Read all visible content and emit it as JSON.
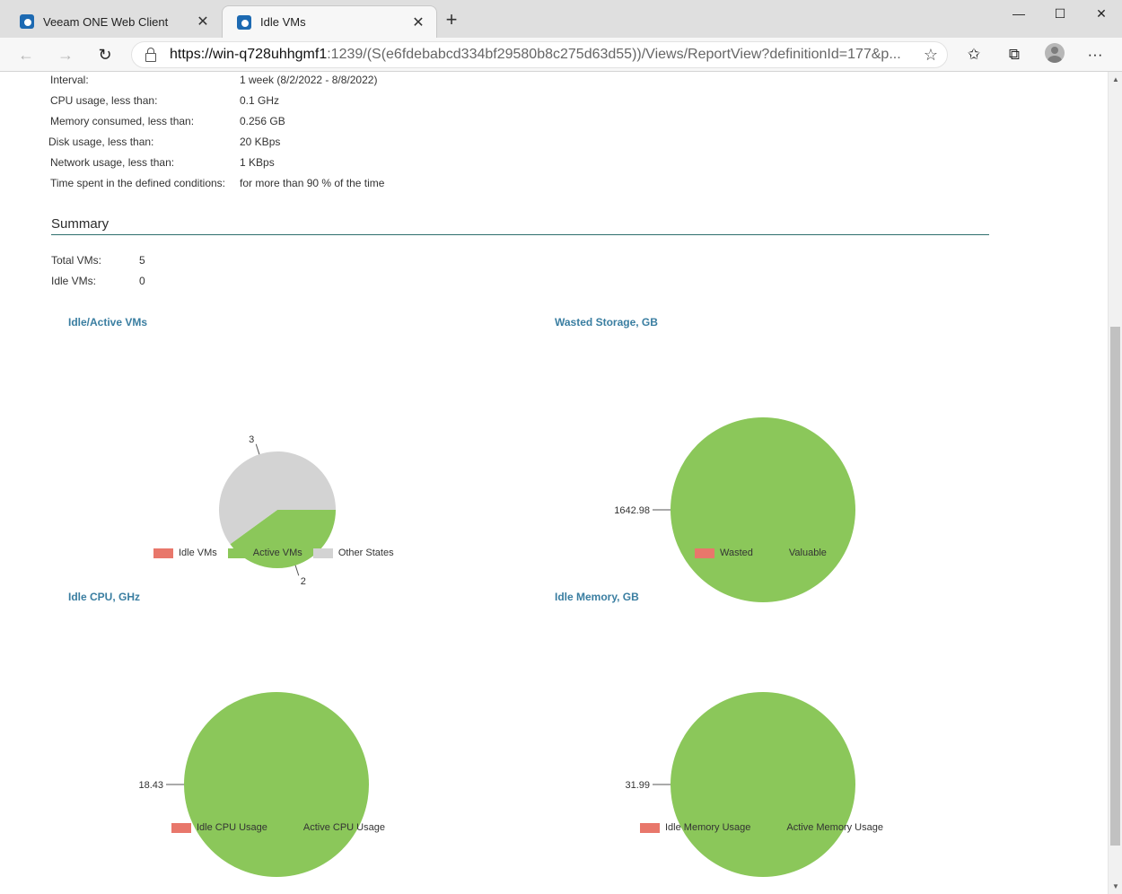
{
  "browser": {
    "tabs": [
      {
        "title": "Veeam ONE Web Client",
        "active": false
      },
      {
        "title": "Idle VMs",
        "active": true
      }
    ],
    "url_host": "https://win-q728uhhgmf1",
    "url_rest": ":1239/(S(e6fdebabcd334bf29580b8c275d63d55))/Views/ReportView?definitionId=177&p..."
  },
  "params": [
    {
      "label": "Interval:",
      "value": "1 week (8/2/2022 - 8/8/2022)"
    },
    {
      "label": "CPU usage, less than:",
      "value": "0.1 GHz"
    },
    {
      "label": "Memory consumed, less than:",
      "value": "0.256 GB"
    },
    {
      "label": "Disk usage, less than:",
      "value": "20 KBps"
    },
    {
      "label": "Network usage, less than:",
      "value": "1 KBps"
    },
    {
      "label": "Time spent in the defined conditions:",
      "value": "for more than 90 % of the time"
    }
  ],
  "summary": {
    "title": "Summary",
    "rows": [
      {
        "label": "Total VMs:",
        "value": "5"
      },
      {
        "label": "Idle VMs:",
        "value": "0"
      }
    ]
  },
  "colors": {
    "red": "#e8776b",
    "green": "#8bc75a",
    "gray": "#d3d3d3",
    "accent_title": "#3a7ea1",
    "rule": "#2f6f6d"
  },
  "chart_data": [
    {
      "type": "pie",
      "title": "Idle/Active VMs",
      "categories": [
        "Idle VMs",
        "Active VMs",
        "Other States"
      ],
      "values": [
        0,
        2,
        3
      ],
      "data_labels": [
        "",
        "2",
        "3"
      ],
      "colors": [
        "#e8776b",
        "#8bc75a",
        "#d3d3d3"
      ],
      "legend": "bottom"
    },
    {
      "type": "pie",
      "title": "Wasted Storage, GB",
      "categories": [
        "Wasted",
        "Valuable"
      ],
      "values": [
        0,
        1642.98
      ],
      "data_labels": [
        "",
        "1642.98"
      ],
      "colors": [
        "#e8776b",
        "#8bc75a"
      ],
      "legend": "bottom"
    },
    {
      "type": "pie",
      "title": "Idle CPU, GHz",
      "categories": [
        "Idle CPU Usage",
        "Active CPU Usage"
      ],
      "values": [
        0,
        18.43
      ],
      "data_labels": [
        "",
        "18.43"
      ],
      "colors": [
        "#e8776b",
        "#8bc75a"
      ],
      "legend": "bottom"
    },
    {
      "type": "pie",
      "title": "Idle Memory, GB",
      "categories": [
        "Idle Memory Usage",
        "Active Memory Usage"
      ],
      "values": [
        0,
        31.99
      ],
      "data_labels": [
        "",
        "31.99"
      ],
      "colors": [
        "#e8776b",
        "#8bc75a"
      ],
      "legend": "bottom"
    }
  ]
}
